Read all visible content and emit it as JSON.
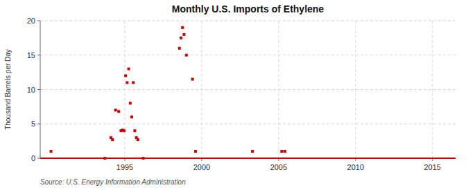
{
  "chart_data": {
    "type": "scatter",
    "title": "Monthly U.S. Imports of Ethylene",
    "ylabel": "Thousand Barrels per Day",
    "annotations": [
      "Source: U.S. Energy Information Administration"
    ],
    "color": "#cc0000",
    "marker": "square",
    "x": [
      1990.2,
      1993.7,
      1994.1,
      1994.2,
      1994.4,
      1994.6,
      1994.75,
      1994.85,
      1994.95,
      1995.05,
      1995.15,
      1995.25,
      1995.35,
      1995.45,
      1995.55,
      1995.65,
      1995.75,
      1995.85,
      1996.2,
      1998.55,
      1998.65,
      1998.75,
      1998.85,
      1999.0,
      1999.4,
      1999.6,
      2003.3,
      2005.2,
      2005.4
    ],
    "values": [
      1.0,
      0.0,
      3.0,
      2.7,
      7.0,
      6.8,
      4.0,
      4.1,
      4.0,
      12.0,
      11.0,
      13.0,
      8.0,
      6.0,
      11.0,
      4.0,
      3.0,
      2.7,
      0.0,
      16.0,
      17.5,
      19.0,
      18.0,
      15.0,
      11.5,
      1.0,
      1.0,
      1.0,
      1.0
    ],
    "xlim": [
      1989.5,
      2016.5
    ],
    "ylim": [
      0,
      20
    ],
    "xticks": [
      1995,
      2000,
      2005,
      2010,
      2015
    ],
    "yticks": [
      0,
      5,
      10,
      15,
      20
    ],
    "grid": true
  }
}
